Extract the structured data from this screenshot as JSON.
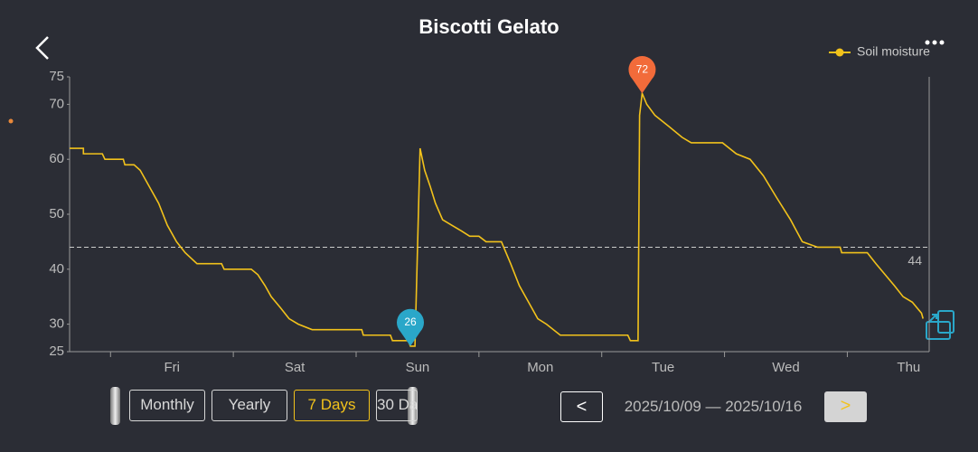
{
  "header": {
    "title": "Biscotti Gelato"
  },
  "chart_data": {
    "type": "line",
    "series": [
      {
        "name": "Soil moisture",
        "color": "#f2c21b",
        "x": [
          -8,
          -5.3,
          -5.3,
          -1.6,
          -1.1,
          2.5,
          2.8,
          4.6,
          5.8,
          7.6,
          9.4,
          11.1,
          12.9,
          14.6,
          16.9,
          21.7,
          22.2,
          27.5,
          28.8,
          30.2,
          31.4,
          33.2,
          34.9,
          36.7,
          39.4,
          49.1,
          49.4,
          54.7,
          55.1,
          58.2,
          58.6,
          59.5,
          60.5,
          61.4,
          62.5,
          63.5,
          64.9,
          66.7,
          68.5,
          70.2,
          72.0,
          73.4,
          76.4,
          78.2,
          79.9,
          81.7,
          83.5,
          85.2,
          87.9,
          88.8,
          101.1,
          101.6,
          103.1,
          103.4,
          103.9,
          104.8,
          106.4,
          109.1,
          111.7,
          113.5,
          119.6,
          122.3,
          125.0,
          127.6,
          130.2,
          132.9,
          135.2,
          138.2,
          142.6,
          142.9,
          147.9,
          149.6,
          151.4,
          153.2,
          154.9,
          156.7,
          158.5,
          158.8
        ],
        "values": [
          62,
          62,
          61,
          61,
          60,
          60,
          59,
          59,
          58,
          55,
          52,
          48,
          45,
          43,
          41,
          41,
          40,
          40,
          39,
          37,
          35,
          33,
          31,
          30,
          29,
          29,
          28,
          28,
          27,
          27,
          26,
          26,
          62,
          58,
          55,
          52,
          49,
          48,
          47,
          46,
          46,
          45,
          45,
          41,
          37,
          34,
          31,
          30,
          28,
          28,
          28,
          27,
          27,
          68,
          72,
          70,
          68,
          66,
          64,
          63,
          63,
          61,
          60,
          57,
          53,
          49,
          45,
          44,
          44,
          43,
          43,
          41,
          39,
          37,
          35,
          34,
          32,
          31
        ]
      }
    ],
    "xlim": [
      -8,
      160
    ],
    "xticks": [
      {
        "value": 12,
        "label": "Fri"
      },
      {
        "value": 36,
        "label": "Sat"
      },
      {
        "value": 60,
        "label": "Sun"
      },
      {
        "value": 84,
        "label": "Mon"
      },
      {
        "value": 108,
        "label": "Tue"
      },
      {
        "value": 132,
        "label": "Wed"
      },
      {
        "value": 156,
        "label": "Thu"
      }
    ],
    "xminor_ticks": [
      0,
      24,
      48,
      72,
      96,
      120,
      144
    ],
    "ylim": [
      25,
      75
    ],
    "yticks": [
      25,
      30,
      40,
      50,
      60,
      70,
      75
    ],
    "reference_line": {
      "value": 44
    },
    "markers": [
      {
        "x": 103.9,
        "value": 72,
        "color": "#f26b3a"
      },
      {
        "x": 58.6,
        "value": 26,
        "color": "#2aa7c9"
      }
    ],
    "legend": "top-right"
  },
  "range_tabs": [
    "Monthly",
    "Yearly",
    "7 Days",
    "30 Days"
  ],
  "selected_tab": 2,
  "date_range": "2025/10/09 — 2025/10/16"
}
